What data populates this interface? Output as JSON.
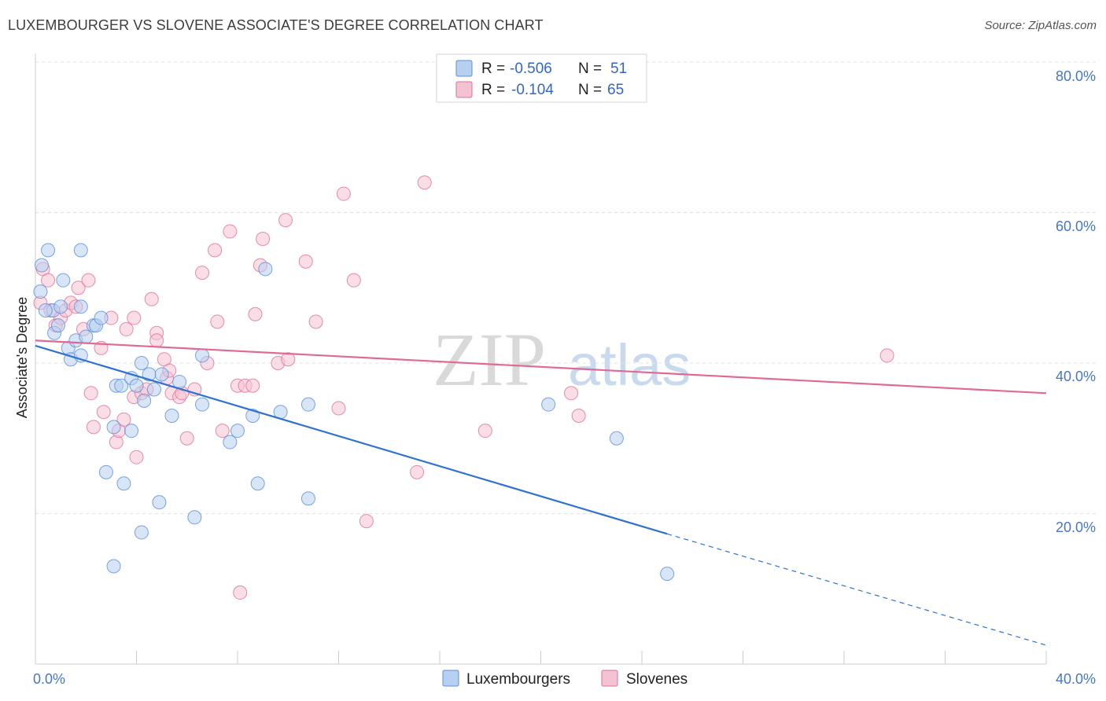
{
  "chart_data": {
    "type": "scatter",
    "title": "LUXEMBOURGER VS SLOVENE ASSOCIATE'S DEGREE CORRELATION CHART",
    "source": "Source: ZipAtlas.com",
    "xlabel": "",
    "ylabel": "Associate's Degree",
    "xlim": [
      0,
      40
    ],
    "ylim": [
      0,
      80
    ],
    "x_tick_labels": [
      "0.0%",
      "40.0%"
    ],
    "y_tick_labels": [
      "20.0%",
      "40.0%",
      "60.0%",
      "80.0%"
    ],
    "y_ticks": [
      20,
      40,
      60,
      80
    ],
    "legend": {
      "r_label": "R =",
      "n_label": "N =",
      "entries": [
        {
          "r": "-0.506",
          "n": "51"
        },
        {
          "r": "-0.104",
          "n": "65"
        }
      ]
    },
    "series": [
      {
        "name": "Luxembourgers",
        "color": "#5b8fd9",
        "fill": "#b8d0f0",
        "trend": {
          "x0": 0,
          "y0": 42.3,
          "x1": 25,
          "y1": 17.3,
          "dash_x1": 40,
          "dash_y1": 2.5
        },
        "points": [
          [
            0.2,
            49.5
          ],
          [
            0.25,
            53
          ],
          [
            0.5,
            55
          ],
          [
            0.7,
            47
          ],
          [
            0.75,
            44
          ],
          [
            0.9,
            45
          ],
          [
            1.1,
            51
          ],
          [
            1.3,
            42
          ],
          [
            1.4,
            40.5
          ],
          [
            1.6,
            43
          ],
          [
            1.8,
            41
          ],
          [
            1.8,
            55
          ],
          [
            2.0,
            43.5
          ],
          [
            2.3,
            45
          ],
          [
            2.4,
            45
          ],
          [
            2.6,
            46
          ],
          [
            2.8,
            25.5
          ],
          [
            3.1,
            31.5
          ],
          [
            3.1,
            13
          ],
          [
            3.2,
            37
          ],
          [
            3.4,
            37
          ],
          [
            3.5,
            24
          ],
          [
            3.8,
            38
          ],
          [
            3.8,
            31
          ],
          [
            4.0,
            37
          ],
          [
            4.2,
            40
          ],
          [
            4.2,
            17.5
          ],
          [
            4.3,
            35
          ],
          [
            4.5,
            38.5
          ],
          [
            4.7,
            36.5
          ],
          [
            4.9,
            21.5
          ],
          [
            5.0,
            38.5
          ],
          [
            5.4,
            33
          ],
          [
            5.7,
            37.5
          ],
          [
            6.3,
            19.5
          ],
          [
            6.6,
            34.5
          ],
          [
            6.6,
            41
          ],
          [
            7.7,
            29.5
          ],
          [
            8.0,
            31
          ],
          [
            8.6,
            33
          ],
          [
            8.8,
            24
          ],
          [
            9.1,
            52.5
          ],
          [
            9.7,
            33.5
          ],
          [
            10.8,
            22
          ],
          [
            10.8,
            34.5
          ],
          [
            20.3,
            34.5
          ],
          [
            23.0,
            30
          ],
          [
            25.0,
            12
          ],
          [
            1.8,
            47.5
          ],
          [
            0.4,
            47
          ],
          [
            1.0,
            47.5
          ]
        ]
      },
      {
        "name": "Slovenes",
        "color": "#e07098",
        "fill": "#f5c2d2",
        "trend": {
          "x0": 0,
          "y0": 43,
          "x1": 40,
          "y1": 36
        },
        "points": [
          [
            0.2,
            48
          ],
          [
            0.3,
            52.5
          ],
          [
            0.5,
            51
          ],
          [
            0.6,
            47
          ],
          [
            0.8,
            45
          ],
          [
            1.0,
            46
          ],
          [
            1.2,
            47
          ],
          [
            1.4,
            48
          ],
          [
            1.6,
            47.5
          ],
          [
            1.7,
            50
          ],
          [
            1.9,
            44.5
          ],
          [
            2.1,
            51
          ],
          [
            2.2,
            36
          ],
          [
            2.3,
            31.5
          ],
          [
            2.6,
            42
          ],
          [
            2.7,
            33.5
          ],
          [
            3.0,
            46
          ],
          [
            3.2,
            29.5
          ],
          [
            3.3,
            31
          ],
          [
            3.5,
            32.5
          ],
          [
            3.6,
            44.5
          ],
          [
            3.9,
            46
          ],
          [
            3.9,
            35.5
          ],
          [
            4.0,
            27.5
          ],
          [
            4.2,
            36
          ],
          [
            4.4,
            36.5
          ],
          [
            4.6,
            48.5
          ],
          [
            4.8,
            44
          ],
          [
            4.8,
            43
          ],
          [
            5.1,
            40.5
          ],
          [
            5.2,
            38
          ],
          [
            5.3,
            39
          ],
          [
            5.4,
            36
          ],
          [
            5.7,
            35.5
          ],
          [
            5.8,
            36
          ],
          [
            6.0,
            30
          ],
          [
            6.3,
            36.5
          ],
          [
            6.6,
            52
          ],
          [
            6.8,
            40
          ],
          [
            7.1,
            55
          ],
          [
            7.2,
            45.5
          ],
          [
            7.4,
            31
          ],
          [
            7.7,
            57.5
          ],
          [
            8.0,
            37
          ],
          [
            8.1,
            9.5
          ],
          [
            8.3,
            37
          ],
          [
            8.6,
            37
          ],
          [
            8.7,
            46.5
          ],
          [
            8.9,
            53
          ],
          [
            9.0,
            56.5
          ],
          [
            9.6,
            40
          ],
          [
            9.9,
            59
          ],
          [
            10.0,
            40.5
          ],
          [
            10.7,
            53.5
          ],
          [
            11.1,
            45.5
          ],
          [
            12.0,
            34
          ],
          [
            12.2,
            62.5
          ],
          [
            12.6,
            51
          ],
          [
            13.1,
            19
          ],
          [
            15.1,
            25.5
          ],
          [
            15.4,
            64
          ],
          [
            17.8,
            31
          ],
          [
            21.2,
            36
          ],
          [
            21.5,
            33
          ],
          [
            33.7,
            41
          ]
        ]
      }
    ],
    "watermark": {
      "zip": "ZIP",
      "atlas": "atlas"
    }
  }
}
